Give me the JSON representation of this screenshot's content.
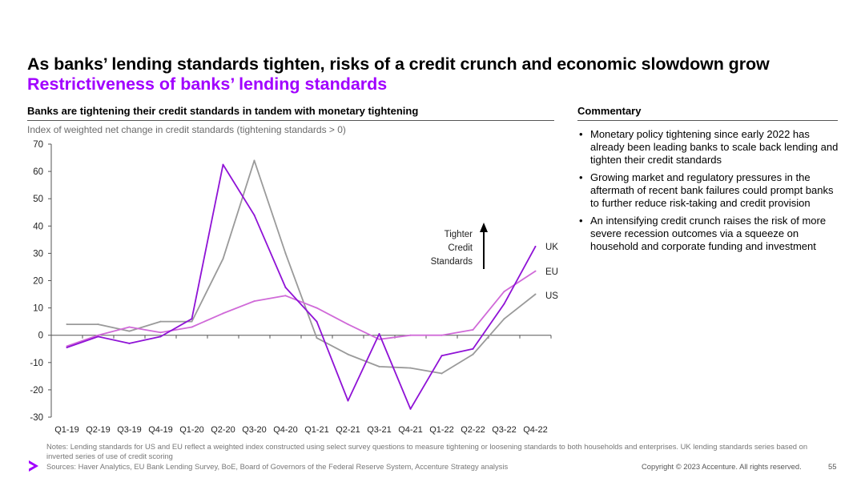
{
  "header": {
    "title": "As banks’ lending standards tighten, risks of a credit crunch and economic slowdown grow",
    "subtitle": "Restrictiveness of banks’ lending standards"
  },
  "chart_section": {
    "heading": "Banks are tightening their credit standards in tandem with monetary tightening",
    "ylabel": "Index of weighted net change in credit standards (tightening standards > 0)"
  },
  "commentary": {
    "heading": "Commentary",
    "bullets": [
      "Monetary policy tightening since early 2022 has already been leading banks to scale back lending and tighten their credit standards",
      "Growing market and regulatory pressures in the aftermath of recent bank failures could prompt banks to further reduce risk-taking and credit provision",
      "An intensifying credit crunch raises the risk of more severe recession outcomes via a squeeze on household and corporate funding and investment"
    ]
  },
  "footer": {
    "notes": "Notes: Lending standards for US and EU reflect a weighted index constructed using select survey questions to measure tightening or loosening standards to both households and enterprises. UK lending standards series based on inverted series of use of credit scoring",
    "sources": "Sources: Haver Analytics, EU Bank Lending Survey, BoE, Board of Governors of the Federal Reserve System, Accenture Strategy analysis",
    "copyright": "Copyright © 2023 Accenture. All rights reserved.",
    "page_number": "55"
  },
  "chart_data": {
    "type": "line",
    "categories": [
      "Q1-19",
      "Q2-19",
      "Q3-19",
      "Q4-19",
      "Q1-20",
      "Q2-20",
      "Q3-20",
      "Q4-20",
      "Q1-21",
      "Q2-21",
      "Q3-21",
      "Q4-21",
      "Q1-22",
      "Q2-22",
      "Q3-22",
      "Q4-22"
    ],
    "ylim": [
      -30,
      70
    ],
    "yticks": [
      "70",
      "60",
      "50",
      "40",
      "30",
      "20",
      "10",
      "0",
      "-10",
      "-20",
      "-30"
    ],
    "yticks_values": [
      70,
      60,
      50,
      40,
      30,
      20,
      10,
      0,
      -10,
      -20,
      -30
    ],
    "grid": false,
    "annotation": [
      "Tighter",
      "Credit",
      "Standards"
    ],
    "series": [
      {
        "name": "UK",
        "color": "#8f12d6",
        "values": [
          -4.5,
          -0.5,
          -3,
          -0.5,
          6,
          62.5,
          44,
          17.5,
          5,
          -24,
          0.5,
          -27,
          -7.5,
          -5,
          11.5,
          32.5
        ]
      },
      {
        "name": "EU",
        "color": "#d06ad8",
        "values": [
          -4,
          0,
          3,
          1,
          3,
          8,
          12.5,
          14.5,
          10,
          4,
          -1.5,
          0,
          0,
          2,
          16,
          23.5
        ]
      },
      {
        "name": "US",
        "color": "#9a9a9a",
        "values": [
          4,
          4,
          1.5,
          5,
          5,
          28,
          64,
          30,
          -1,
          -7,
          -11.5,
          -12,
          -14,
          -7,
          6,
          15
        ]
      }
    ]
  }
}
